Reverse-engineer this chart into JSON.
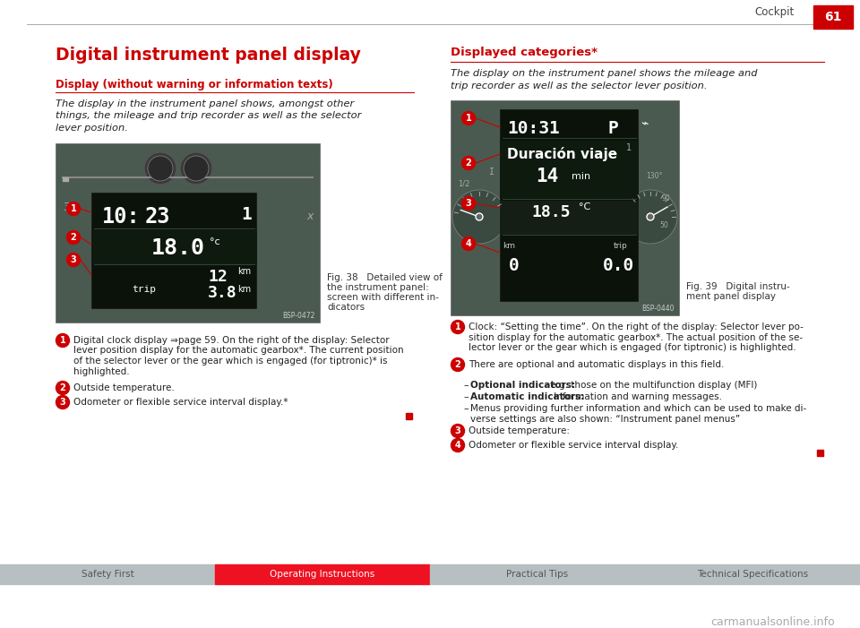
{
  "page_bg": "#ffffff",
  "header_line_color": "#aaaaaa",
  "header_text": "Cockpit",
  "header_page": "61",
  "header_red_bg": "#cc0000",
  "title_left": "Digital instrument panel display",
  "title_left_color": "#cc0000",
  "section1_title": "Display (without warning or information texts)",
  "section1_title_color": "#cc0000",
  "section1_underline_color": "#cc0000",
  "section1_body": "The display in the instrument panel shows, amongst other\nthings, the mileage and trip recorder as well as the selector\nlever position.",
  "fig38_caption": "Fig. 38   Detailed view of\nthe instrument panel:\nscreen with different in-\ndicators",
  "fig38_ref": "BSP-0472",
  "item1_left": "Digital clock display ⇒page 59. On the right of the display: Selector\nlever position display for the automatic gearbox*. The current position\nof the selector lever or the gear which is engaged (for tiptronic)* is\nhighlighted.",
  "item2_left": "Outside temperature.",
  "item3_left": "Odometer or flexible service interval display.*",
  "section2_title": "Displayed categories*",
  "section2_title_color": "#cc0000",
  "section2_underline_color": "#cc0000",
  "section2_intro": "The display on the instrument panel shows the mileage and\ntrip recorder as well as the selector lever position.",
  "fig39_caption": "Fig. 39   Digital instru-\nment panel display",
  "fig39_ref": "BSP-0440",
  "item1_right_l1": "Clock: “Setting the time”. On the right of the display: Selector lever po-",
  "item1_right_l2": "sition display for the automatic gearbox*. The actual position of the se-",
  "item1_right_l3": "lector lever or the gear which is engaged (for tiptronic) is highlighted.",
  "item2_right": "There are optional and automatic displays in this field.",
  "bullet1_bold": "Optional indicators:",
  "bullet1_rest": " e.g. those on the multifunction display (MFI)",
  "bullet2_bold": "Automatic indicators:",
  "bullet2_rest": " Information and warning messages.",
  "bullet3_l1": "Menus providing further information and which can be used to make di-",
  "bullet3_l2": "verse settings are also shown: “Instrument panel menus”",
  "item3_right": "Outside temperature:",
  "item4_right": "Odometer or flexible service interval display.",
  "square_color": "#cc0000",
  "footer_bg1": "#b8bfc2",
  "footer_bg2": "#ee1122",
  "footer_bg3": "#b8bfc2",
  "footer_bg4": "#b8bfc2",
  "footer_text1": "Safety First",
  "footer_text2": "Operating Instructions",
  "footer_text3": "Practical Tips",
  "footer_text4": "Technical Specifications",
  "watermark": "carmanualsonline.info",
  "circle_fill": "#cc0000",
  "circle_text_color": "#ffffff",
  "divider_color": "#cc0000",
  "img_outer_color": "#4a5a50",
  "img_panel_color": "#3a4a40",
  "img_display_bg": "#0a120a",
  "img_display_mid": "#111a11",
  "gauge_color": "#3a4a40",
  "gauge_rim": "#1a2a1a"
}
